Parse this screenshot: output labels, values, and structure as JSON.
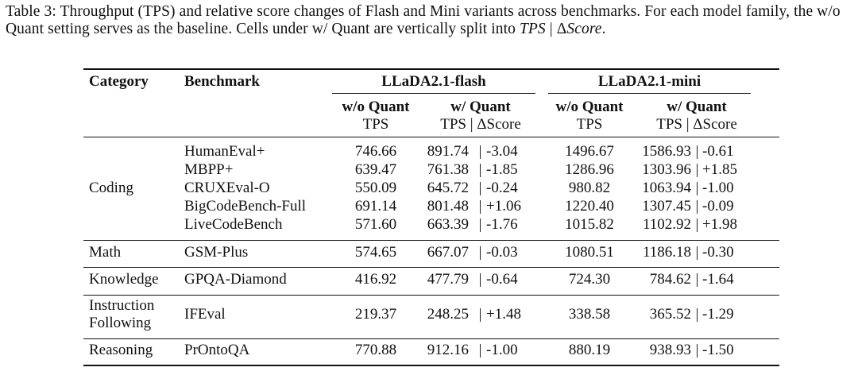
{
  "caption": {
    "label": "Table 3:",
    "text": " Throughput (TPS) and relative score changes of Flash and Mini variants across benchmarks. For each model family, the w/o Quant setting serves as the baseline. Cells under w/ Quant are vertically split into ",
    "tps": "TPS",
    "sep": " | Δ",
    "score": "Score",
    "end": "."
  },
  "header": {
    "category": "Category",
    "benchmark": "Benchmark",
    "flash": "LLaDA2.1-flash",
    "mini": "LLaDA2.1-mini",
    "wo_quant": "w/o Quant",
    "w_quant": "w/ Quant",
    "tps": "TPS",
    "tps_delta": "TPS | ΔScore"
  },
  "groups": [
    {
      "category": "Coding",
      "rows": [
        {
          "benchmark": "HumanEval+",
          "flash_wo": "746.66",
          "flash_w_tps": "891.74",
          "flash_w_delta": "-3.04",
          "mini_wo": "1496.67",
          "mini_w_tps": "1586.93",
          "mini_w_delta": "-0.61"
        },
        {
          "benchmark": "MBPP+",
          "flash_wo": "639.47",
          "flash_w_tps": "761.38",
          "flash_w_delta": "-1.85",
          "mini_wo": "1286.96",
          "mini_w_tps": "1303.96",
          "mini_w_delta": "+1.85"
        },
        {
          "benchmark": "CRUXEval-O",
          "flash_wo": "550.09",
          "flash_w_tps": "645.72",
          "flash_w_delta": "-0.24",
          "mini_wo": "980.82",
          "mini_w_tps": "1063.94",
          "mini_w_delta": "-1.00"
        },
        {
          "benchmark": "BigCodeBench-Full",
          "flash_wo": "691.14",
          "flash_w_tps": "801.48",
          "flash_w_delta": "+1.06",
          "mini_wo": "1220.40",
          "mini_w_tps": "1307.45",
          "mini_w_delta": "-0.09"
        },
        {
          "benchmark": "LiveCodeBench",
          "flash_wo": "571.60",
          "flash_w_tps": "663.39",
          "flash_w_delta": "-1.76",
          "mini_wo": "1015.82",
          "mini_w_tps": "1102.92",
          "mini_w_delta": "+1.98"
        }
      ]
    },
    {
      "category": "Math",
      "rows": [
        {
          "benchmark": "GSM-Plus",
          "flash_wo": "574.65",
          "flash_w_tps": "667.07",
          "flash_w_delta": "-0.03",
          "mini_wo": "1080.51",
          "mini_w_tps": "1186.18",
          "mini_w_delta": "-0.30"
        }
      ]
    },
    {
      "category": "Knowledge",
      "rows": [
        {
          "benchmark": "GPQA-Diamond",
          "flash_wo": "416.92",
          "flash_w_tps": "477.79",
          "flash_w_delta": "-0.64",
          "mini_wo": "724.30",
          "mini_w_tps": "784.62",
          "mini_w_delta": "-1.64"
        }
      ]
    },
    {
      "category": "Instruction Following",
      "category_lines": [
        "Instruction",
        "Following"
      ],
      "rows": [
        {
          "benchmark": "IFEval",
          "flash_wo": "219.37",
          "flash_w_tps": "248.25",
          "flash_w_delta": "+1.48",
          "mini_wo": "338.58",
          "mini_w_tps": "365.52",
          "mini_w_delta": "-1.29"
        }
      ]
    },
    {
      "category": "Reasoning",
      "rows": [
        {
          "benchmark": "PrOntoQA",
          "flash_wo": "770.88",
          "flash_w_tps": "912.16",
          "flash_w_delta": "-1.00",
          "mini_wo": "880.19",
          "mini_w_tps": "938.93",
          "mini_w_delta": "-1.50"
        }
      ]
    }
  ]
}
